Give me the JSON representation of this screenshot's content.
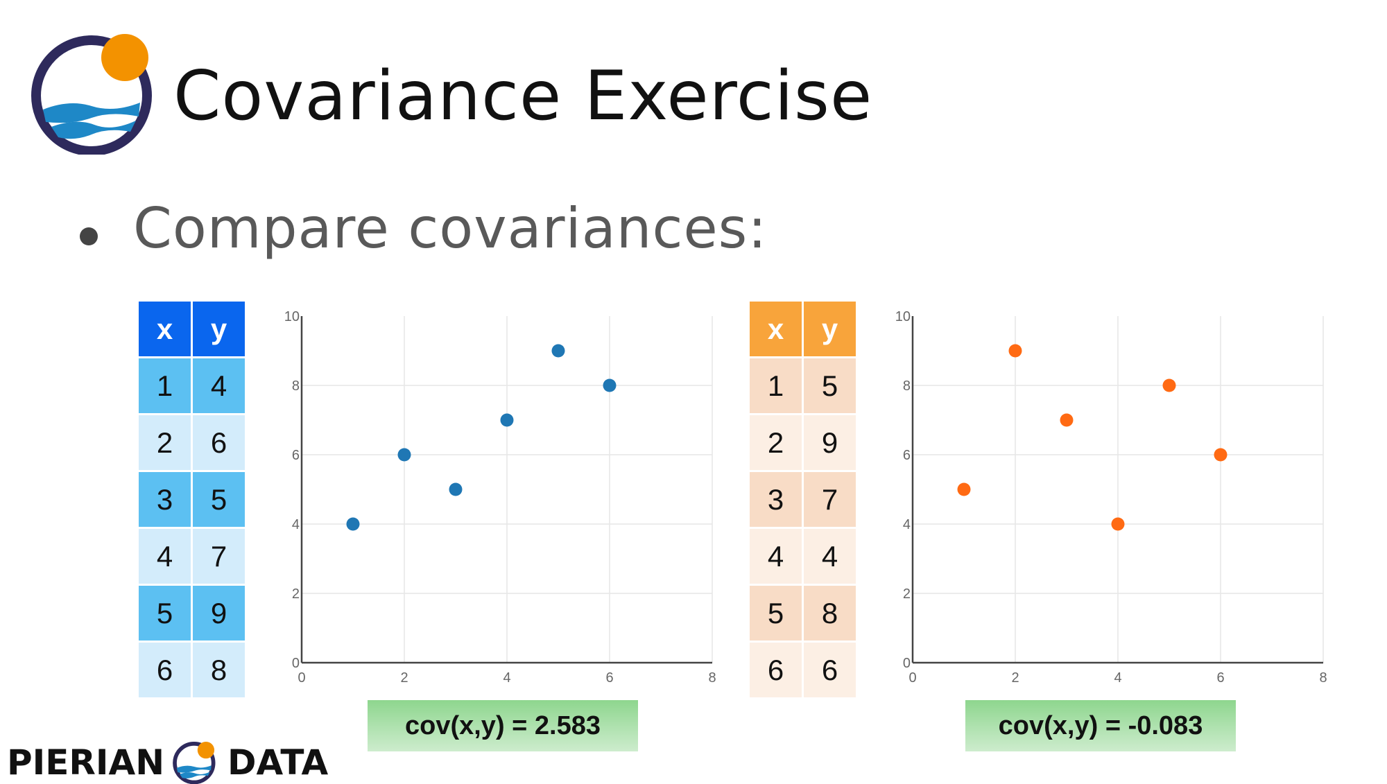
{
  "header": {
    "title": "Covariance Exercise"
  },
  "bullet": {
    "text": "Compare covariances:"
  },
  "brand": {
    "left": "PIERIAN",
    "right": "DATA"
  },
  "colors": {
    "blue_point": "#1f77b4",
    "orange_point": "#ff6a13",
    "logo_ring": "#2e2a5c",
    "logo_sun": "#f39200",
    "logo_wave": "#1e88c7"
  },
  "tables": [
    {
      "headers": [
        "x",
        "y"
      ],
      "rows": [
        [
          "1",
          "4"
        ],
        [
          "2",
          "6"
        ],
        [
          "3",
          "5"
        ],
        [
          "4",
          "7"
        ],
        [
          "5",
          "9"
        ],
        [
          "6",
          "8"
        ]
      ]
    },
    {
      "headers": [
        "x",
        "y"
      ],
      "rows": [
        [
          "1",
          "5"
        ],
        [
          "2",
          "9"
        ],
        [
          "3",
          "7"
        ],
        [
          "4",
          "4"
        ],
        [
          "5",
          "8"
        ],
        [
          "6",
          "6"
        ]
      ]
    }
  ],
  "covariance": [
    {
      "label": "cov(x,y) = 2.583"
    },
    {
      "label": "cov(x,y) = -0.083"
    }
  ],
  "chart_data": [
    {
      "type": "scatter",
      "title": "",
      "xlabel": "",
      "ylabel": "",
      "x": [
        1,
        2,
        3,
        4,
        5,
        6
      ],
      "y": [
        4,
        6,
        5,
        7,
        9,
        8
      ],
      "xlim": [
        0,
        8
      ],
      "ylim": [
        0,
        10
      ],
      "xticks": [
        "0",
        "2",
        "4",
        "6",
        "8"
      ],
      "yticks": [
        "0",
        "2",
        "4",
        "6",
        "8",
        "10"
      ],
      "grid": true,
      "color": "#1f77b4"
    },
    {
      "type": "scatter",
      "title": "",
      "xlabel": "",
      "ylabel": "",
      "x": [
        1,
        2,
        3,
        4,
        5,
        6
      ],
      "y": [
        5,
        9,
        7,
        4,
        8,
        6
      ],
      "xlim": [
        0,
        8
      ],
      "ylim": [
        0,
        10
      ],
      "xticks": [
        "0",
        "2",
        "4",
        "6",
        "8"
      ],
      "yticks": [
        "0",
        "2",
        "4",
        "6",
        "8",
        "10"
      ],
      "grid": true,
      "color": "#ff6a13"
    }
  ]
}
